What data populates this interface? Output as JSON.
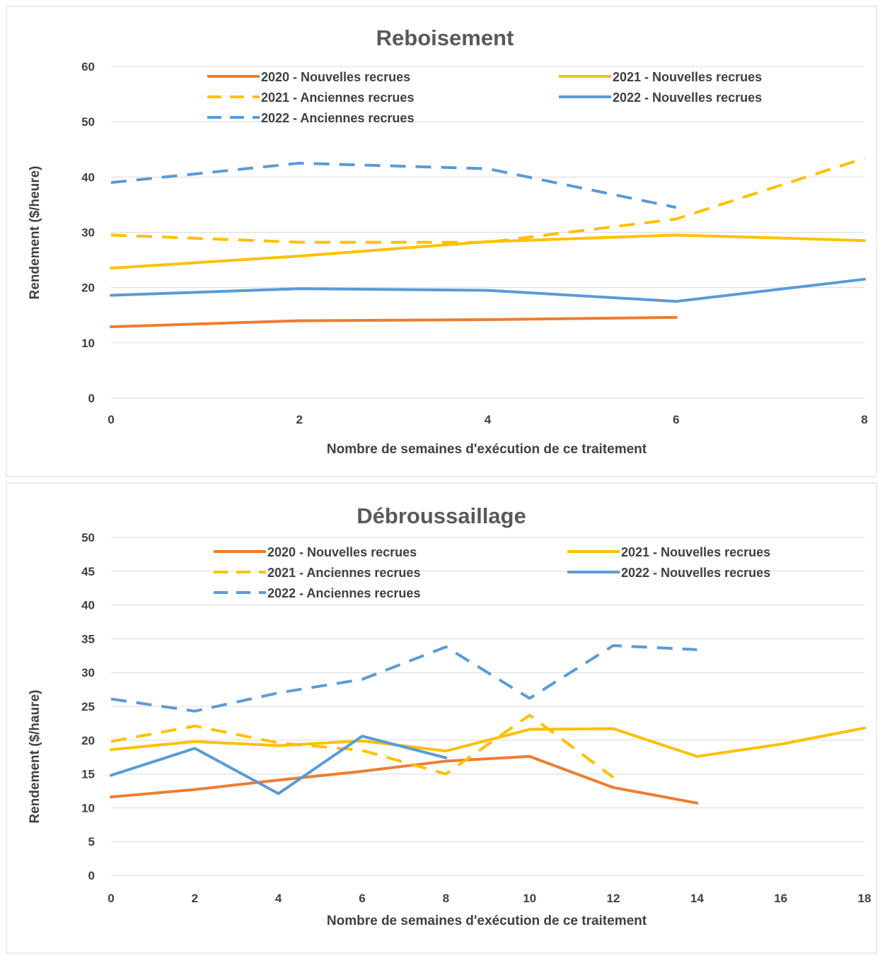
{
  "chart_data": [
    {
      "type": "line",
      "title": "Reboisement",
      "xlabel": "Nombre de semaines d'exécution de ce traitement",
      "ylabel": "Rendement ($/heure)",
      "xlim": [
        0,
        8
      ],
      "ylim": [
        0,
        60
      ],
      "xticks": [
        0,
        2,
        4,
        6,
        8
      ],
      "yticks": [
        0,
        10,
        20,
        30,
        40,
        50,
        60
      ],
      "grid": true,
      "legend_position": "top",
      "series": [
        {
          "name": "2020 - Nouvelles recrues",
          "color": "#ED7D31",
          "dash": "solid",
          "x": [
            0,
            2,
            4,
            6
          ],
          "y": [
            12.9,
            14.0,
            14.2,
            14.6
          ]
        },
        {
          "name": "2021 - Nouvelles recrues",
          "color": "#FFC000",
          "dash": "solid",
          "x": [
            0,
            2,
            4,
            6,
            8
          ],
          "y": [
            23.5,
            25.7,
            28.3,
            29.5,
            28.5
          ]
        },
        {
          "name": "2021 - Anciennes recrues",
          "color": "#FFC000",
          "dash": "dashed",
          "x": [
            0,
            2,
            4,
            6,
            8
          ],
          "y": [
            29.5,
            28.2,
            28.2,
            32.4,
            43.4
          ]
        },
        {
          "name": "2022 - Nouvelles recrues",
          "color": "#5B9BD5",
          "dash": "solid",
          "x": [
            0,
            2,
            4,
            6,
            8
          ],
          "y": [
            18.6,
            19.8,
            19.5,
            17.5,
            21.5
          ]
        },
        {
          "name": "2022 - Anciennes recrues",
          "color": "#5B9BD5",
          "dash": "dashed",
          "x": [
            0,
            2,
            4,
            6
          ],
          "y": [
            39.0,
            42.5,
            41.5,
            34.5
          ]
        }
      ]
    },
    {
      "type": "line",
      "title": "Débroussaillage",
      "xlabel": "Nombre de semaines d'exécution de ce traitement",
      "ylabel": "Rendement ($/haure)",
      "xlim": [
        0,
        18
      ],
      "ylim": [
        0,
        50
      ],
      "xticks": [
        0,
        2,
        4,
        6,
        8,
        10,
        12,
        14,
        16,
        18
      ],
      "yticks": [
        0,
        5,
        10,
        15,
        20,
        25,
        30,
        35,
        40,
        45,
        50
      ],
      "grid": true,
      "legend_position": "top",
      "series": [
        {
          "name": "2020 - Nouvelles recrues",
          "color": "#ED7D31",
          "dash": "solid",
          "x": [
            0,
            2,
            4,
            6,
            8,
            10,
            12,
            14
          ],
          "y": [
            11.6,
            12.7,
            14.1,
            15.4,
            16.9,
            17.6,
            13.0,
            10.7
          ]
        },
        {
          "name": "2021 - Nouvelles recrues",
          "color": "#FFC000",
          "dash": "solid",
          "x": [
            0,
            2,
            4,
            6,
            8,
            10,
            12,
            14,
            16,
            18
          ],
          "y": [
            18.6,
            19.8,
            19.2,
            19.9,
            18.4,
            21.6,
            21.7,
            17.6,
            19.4,
            21.8
          ]
        },
        {
          "name": "2021 - Anciennes recrues",
          "color": "#FFC000",
          "dash": "dashed",
          "x": [
            0,
            2,
            4,
            6,
            8,
            10,
            12
          ],
          "y": [
            19.8,
            22.1,
            19.6,
            18.5,
            15.0,
            23.7,
            14.5
          ]
        },
        {
          "name": "2022 - Nouvelles recrues",
          "color": "#5B9BD5",
          "dash": "solid",
          "x": [
            0,
            2,
            4,
            6,
            8
          ],
          "y": [
            14.8,
            18.8,
            12.1,
            20.6,
            17.4
          ]
        },
        {
          "name": "2022 - Anciennes recrues",
          "color": "#5B9BD5",
          "dash": "dashed",
          "x": [
            0,
            2,
            4,
            6,
            8,
            10,
            12,
            14
          ],
          "y": [
            26.1,
            24.3,
            27.0,
            29.0,
            33.8,
            26.2,
            34.0,
            33.4
          ]
        }
      ]
    }
  ]
}
